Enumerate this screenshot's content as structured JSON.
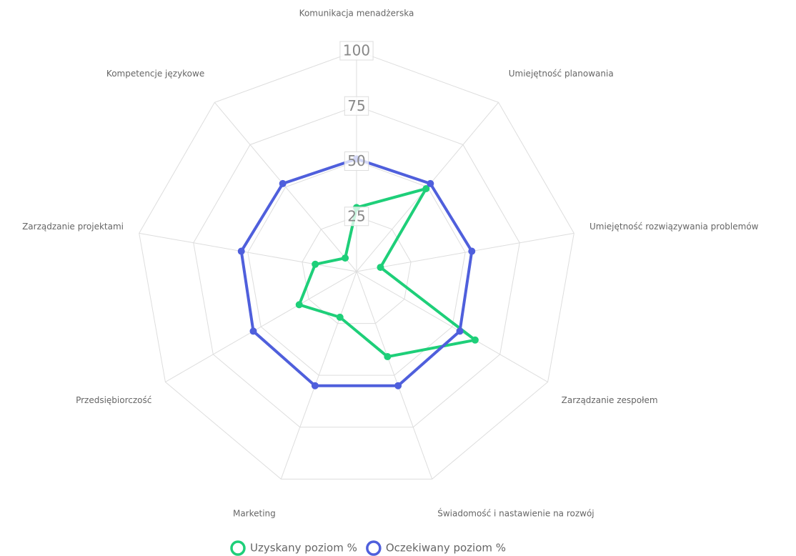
{
  "chart_data": {
    "type": "radar",
    "categories": [
      "Komunikacja menadżerska",
      "Umiejętność planowania",
      "Umiejętność rozwiązywania problemów",
      "Zarządzanie zespołem",
      "Świadomość i nastawienie na rozwój",
      "Marketing",
      "Przedsiębiorczość",
      "Zarządzanie projektami",
      "Kompetencje językowe"
    ],
    "series": [
      {
        "name": "Uzyskany poziom %",
        "color": "#1ecf79",
        "values": [
          29,
          49,
          11,
          62,
          41,
          22,
          30,
          19,
          8
        ]
      },
      {
        "name": "Oczekiwany poziom %",
        "color": "#4f5fdc",
        "values": [
          51,
          52,
          53,
          54,
          55,
          55,
          54,
          53,
          52
        ]
      }
    ],
    "rlim": [
      0,
      100
    ],
    "rticks": [
      25,
      50,
      75,
      100
    ],
    "grid": true,
    "legend": "bottom"
  }
}
